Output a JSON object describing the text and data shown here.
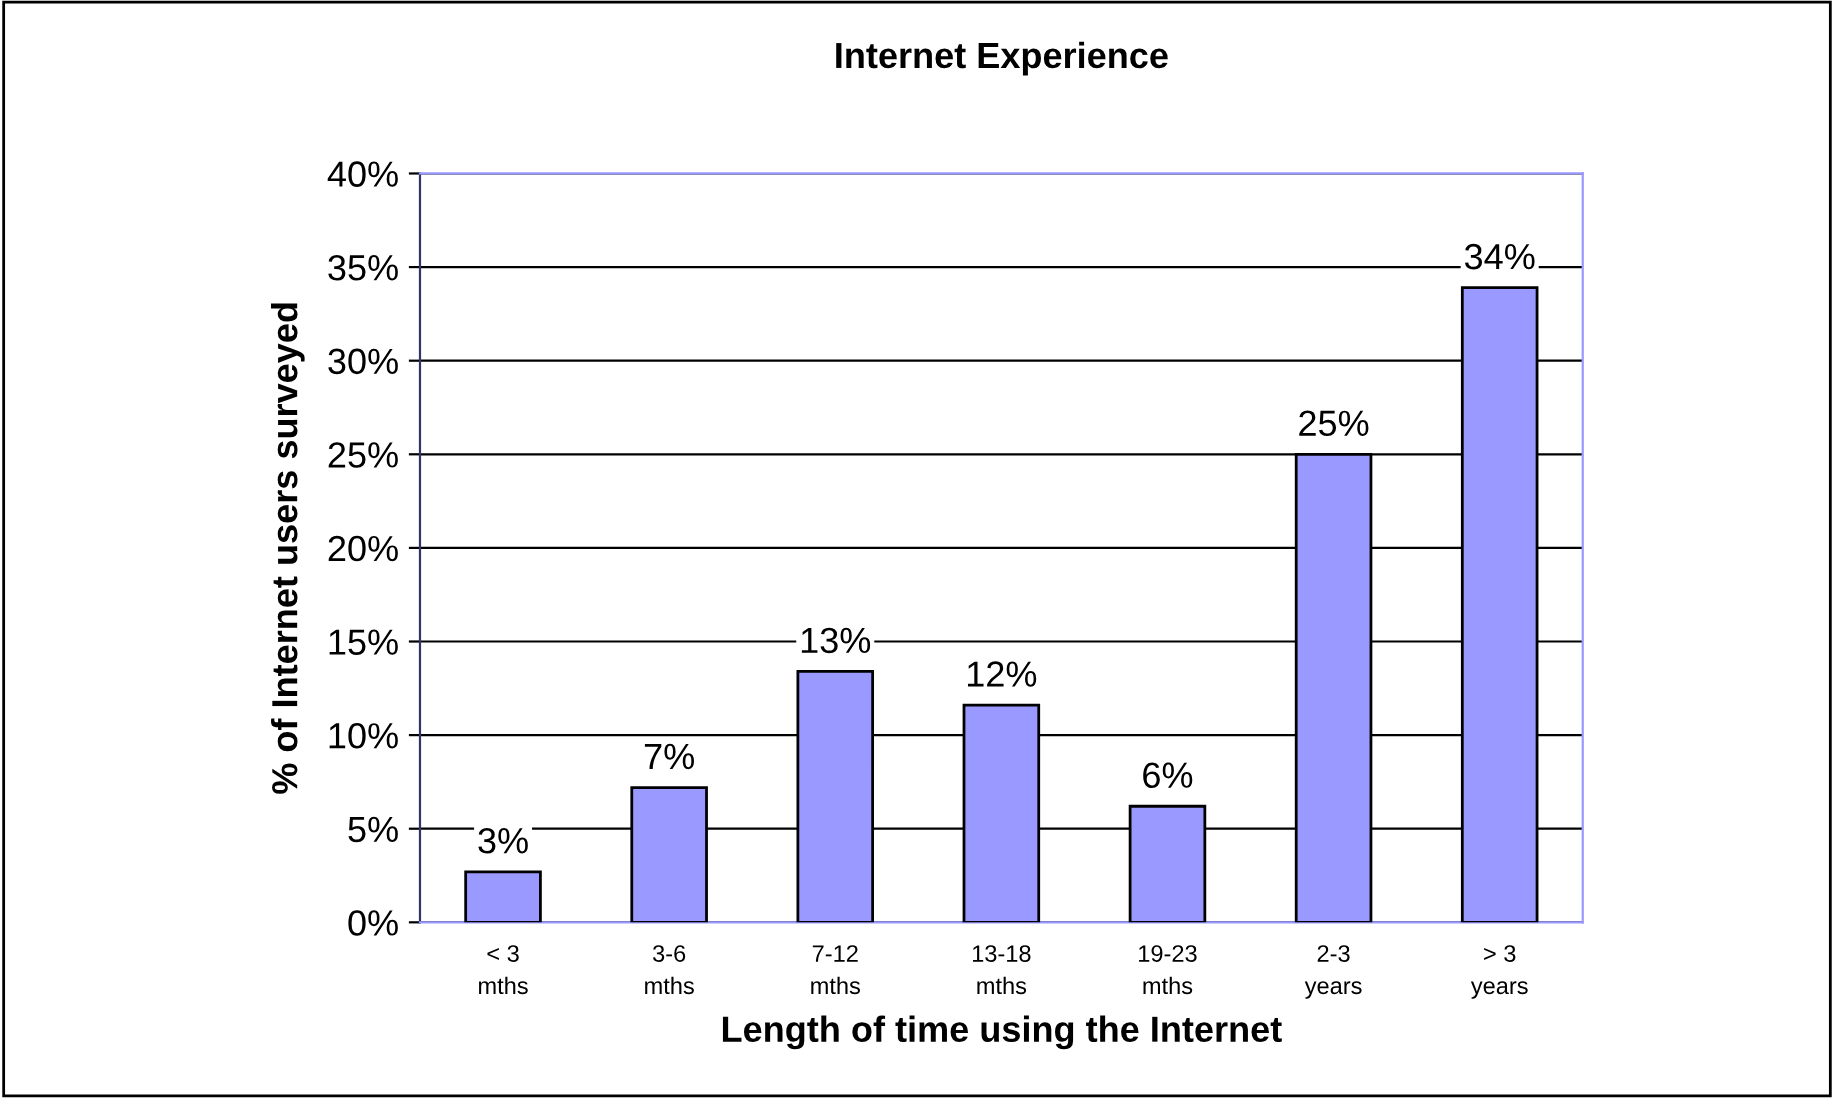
{
  "chart_data": {
    "type": "bar",
    "title": "Internet Experience",
    "xlabel": "Length of time using the Internet",
    "ylabel": "% of Internet users surveyed",
    "categories": [
      "< 3\nmths",
      "3-6\nmths",
      "7-12\nmths",
      "13-18\nmths",
      "19-23\nmths",
      "2-3\nyears",
      "> 3\nyears"
    ],
    "values": [
      2.7,
      7.2,
      13.4,
      11.6,
      6.2,
      25,
      33.9
    ],
    "value_labels": [
      "3%",
      "7%",
      "13%",
      "12%",
      "6%",
      "25%",
      "34%"
    ],
    "color": "#9999ff",
    "ylim": [
      0,
      40
    ],
    "yticks": [
      {
        "value": 0,
        "label": "0%"
      },
      {
        "value": 5,
        "label": "5%"
      },
      {
        "value": 10,
        "label": "10%"
      },
      {
        "value": 15,
        "label": "15%"
      },
      {
        "value": 20,
        "label": "20%"
      },
      {
        "value": 25,
        "label": "25%"
      },
      {
        "value": 30,
        "label": "30%"
      },
      {
        "value": 35,
        "label": "35%"
      },
      {
        "value": 40,
        "label": "40%"
      }
    ],
    "grid": "y",
    "legend": false
  }
}
